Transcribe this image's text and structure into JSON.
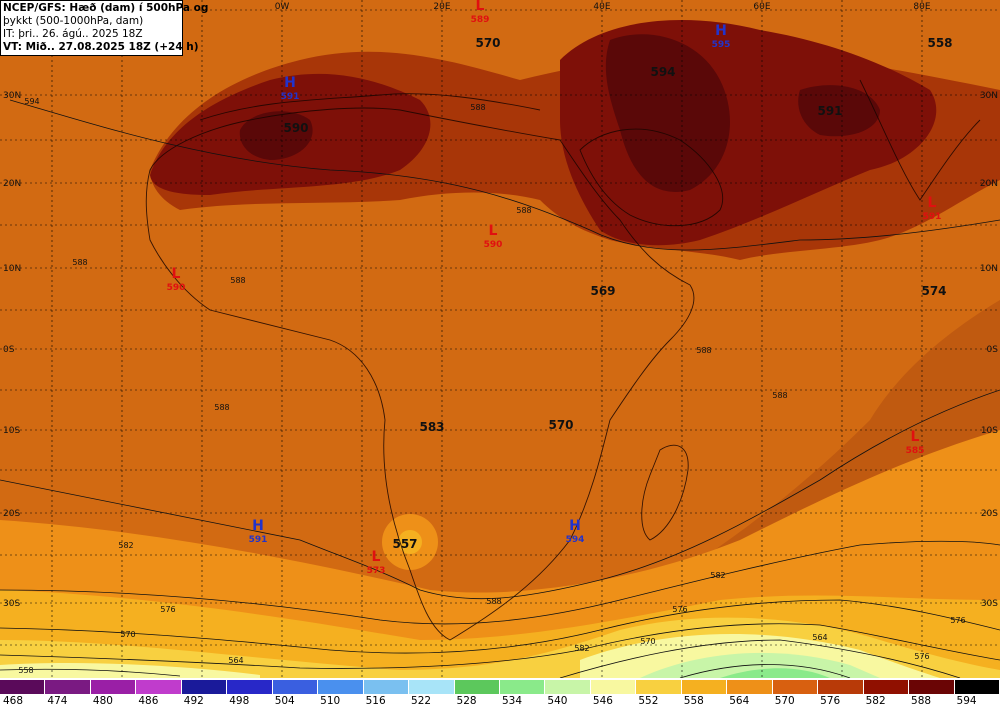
{
  "header": {
    "line1": "NCEP/GFS: Hæð (dam) í 500hPa og",
    "line2": "þykkt (500-1000hPa, dam)",
    "line3": "IT: þri.. 26. ágú.. 2025 18Z",
    "line4": "VT: Mið.. 27.08.2025 18Z (+24 h)"
  },
  "map": {
    "lon_labels": [
      "0W",
      "20E",
      "40E",
      "60E",
      "80E"
    ],
    "lat_labels": [
      "30N",
      "20N",
      "10N",
      "0S",
      "10S",
      "20S",
      "30S"
    ],
    "centers": [
      {
        "type": "H",
        "value": "591",
        "color": "#2233cc"
      },
      {
        "type": "H",
        "value": "595",
        "color": "#2233cc"
      },
      {
        "type": "H",
        "value": "591",
        "color": "#2233cc"
      },
      {
        "type": "H",
        "value": "594",
        "color": "#2233cc"
      },
      {
        "type": "L",
        "value": "589",
        "color": "#e01010"
      },
      {
        "type": "L",
        "value": "590",
        "color": "#e01010"
      },
      {
        "type": "L",
        "value": "590",
        "color": "#e01010"
      },
      {
        "type": "L",
        "value": "591",
        "color": "#e01010"
      },
      {
        "type": "L",
        "value": "573",
        "color": "#e01010"
      },
      {
        "type": "L",
        "value": "585",
        "color": "#e01010"
      }
    ],
    "thickness_values": [
      "570",
      "594",
      "558",
      "590",
      "591",
      "569",
      "574",
      "583",
      "570",
      "557"
    ],
    "contour_labels": [
      "594",
      "588",
      "588",
      "588",
      "588",
      "588",
      "588",
      "588",
      "582",
      "576",
      "570",
      "564",
      "558",
      "582",
      "576",
      "570",
      "564",
      "576",
      "576",
      "582",
      "588"
    ]
  },
  "colorbar": {
    "labels": [
      "468",
      "474",
      "480",
      "486",
      "492",
      "498",
      "504",
      "510",
      "516",
      "522",
      "528",
      "534",
      "540",
      "546",
      "552",
      "558",
      "564",
      "570",
      "576",
      "582",
      "588",
      "594"
    ],
    "colors": [
      "#5a0a5a",
      "#7a1a82",
      "#9a1fa6",
      "#c03ccc",
      "#1a1a9a",
      "#2828c8",
      "#3a5fe0",
      "#4a90ee",
      "#7ac0f0",
      "#a8e4f8",
      "#5cc85c",
      "#8aea8a",
      "#c8f5a8",
      "#f8f8a0",
      "#f8d040",
      "#f5b020",
      "#ee9018",
      "#d86010",
      "#b83a08",
      "#901000",
      "#6a0505",
      "#000000"
    ]
  }
}
